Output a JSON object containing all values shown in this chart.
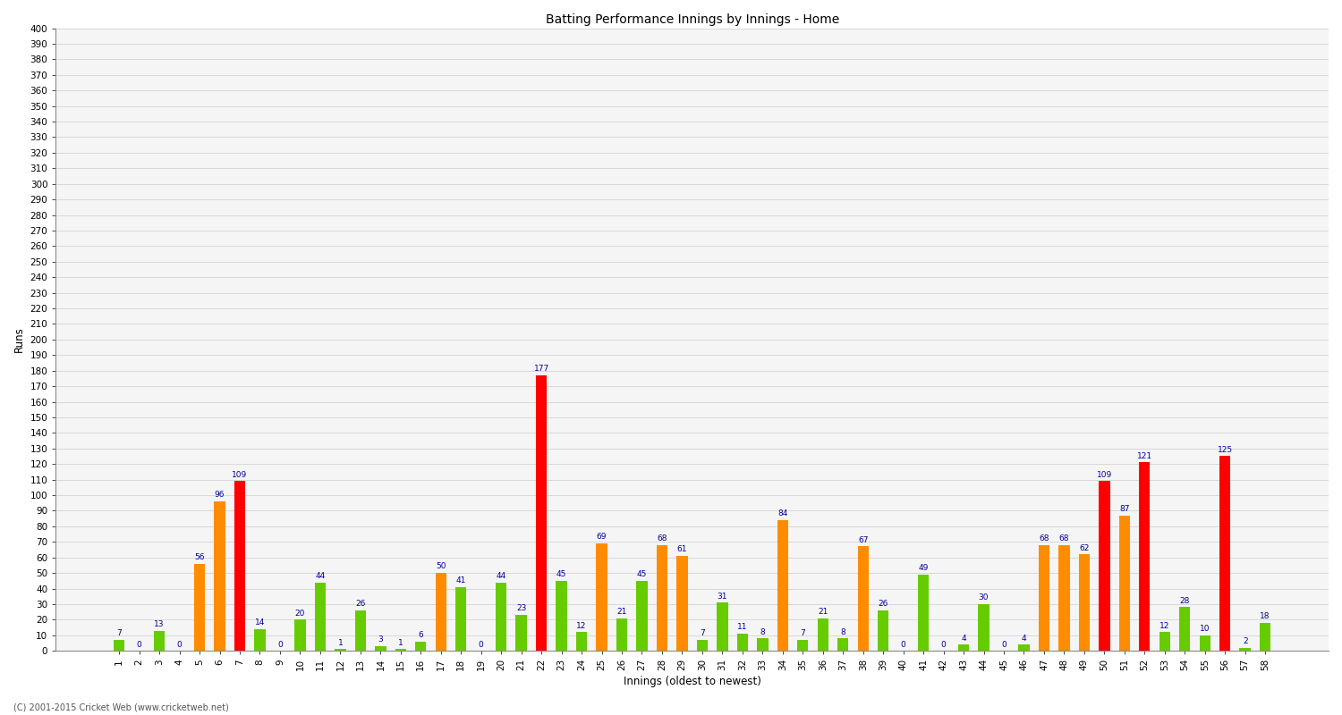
{
  "title": "Batting Performance Innings by Innings - Home",
  "xlabel": "Innings (oldest to newest)",
  "ylabel": "Runs",
  "innings": [
    1,
    2,
    3,
    4,
    5,
    6,
    7,
    8,
    9,
    10,
    11,
    12,
    13,
    14,
    15,
    16,
    17,
    18,
    19,
    20,
    21,
    22,
    23,
    24,
    25,
    26,
    27,
    28,
    29,
    30,
    31,
    32,
    33,
    34,
    35,
    36,
    37,
    38,
    39,
    40,
    41,
    42,
    43,
    44,
    45,
    46,
    47,
    48,
    49,
    50,
    51,
    52,
    53,
    54,
    55,
    56,
    57,
    58
  ],
  "scores": [
    7,
    0,
    13,
    0,
    56,
    96,
    109,
    14,
    0,
    20,
    44,
    1,
    26,
    3,
    1,
    6,
    50,
    41,
    0,
    44,
    23,
    177,
    45,
    12,
    69,
    21,
    45,
    68,
    61,
    7,
    31,
    11,
    8,
    84,
    7,
    21,
    8,
    67,
    26,
    0,
    49,
    0,
    4,
    30,
    0,
    4,
    68,
    68,
    62,
    109,
    87,
    121,
    12,
    28,
    10,
    125,
    2,
    18
  ],
  "century_color": "#ff0000",
  "fifty_color": "#ff8c00",
  "below_fifty_color": "#66cc00",
  "label_color": "#000099",
  "background_color": "#ffffff",
  "plot_bg_color": "#f5f5f5",
  "grid_color": "#cccccc",
  "footer": "(C) 2001-2015 Cricket Web (www.cricketweb.net)",
  "ylim": [
    0,
    400
  ],
  "yticks": [
    0,
    10,
    20,
    30,
    40,
    50,
    60,
    70,
    80,
    90,
    100,
    110,
    120,
    130,
    140,
    150,
    160,
    170,
    180,
    190,
    200,
    210,
    220,
    230,
    240,
    250,
    260,
    270,
    280,
    290,
    300,
    310,
    320,
    330,
    340,
    350,
    360,
    370,
    380,
    390,
    400
  ],
  "label_fontsize": 6.5,
  "axis_fontsize": 7.5,
  "title_fontsize": 10
}
